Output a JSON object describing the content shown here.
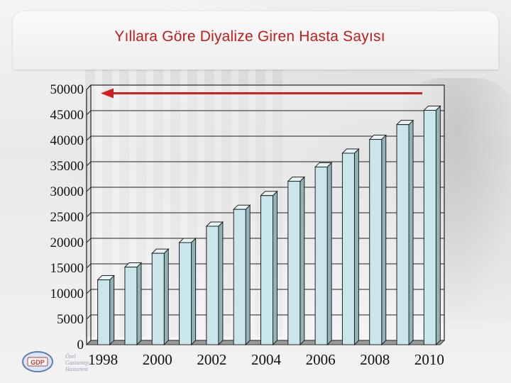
{
  "slide": {
    "title": "Yıllara Göre Diyalize Giren Hasta Sayısı",
    "logo_text": [
      "Özel",
      "Gaziantep",
      "Hastanesi"
    ],
    "logo_mark": "GDP"
  },
  "chart_data": {
    "type": "bar",
    "title": "Yıllara Göre Diyalize Giren Hasta Sayısı",
    "categories": [
      "1998",
      "1999",
      "2000",
      "2001",
      "2002",
      "2003",
      "2004",
      "2005",
      "2006",
      "2007",
      "2008",
      "2009",
      "2010"
    ],
    "values": [
      12700,
      15200,
      17900,
      20000,
      23200,
      26500,
      29200,
      32000,
      34800,
      37500,
      40200,
      43100,
      45900
    ],
    "x_tick_labels": [
      "1998",
      "2000",
      "2002",
      "2004",
      "2006",
      "2008",
      "2010"
    ],
    "y_tick_labels": [
      "0",
      "5000",
      "10000",
      "15000",
      "20000",
      "25000",
      "30000",
      "35000",
      "40000",
      "45000",
      "50000"
    ],
    "ylim": [
      0,
      50000
    ],
    "grid": true,
    "bar_color": "#c9e6ea",
    "arrow_color": "#d21f1f",
    "title_color": "#c41a1a"
  }
}
